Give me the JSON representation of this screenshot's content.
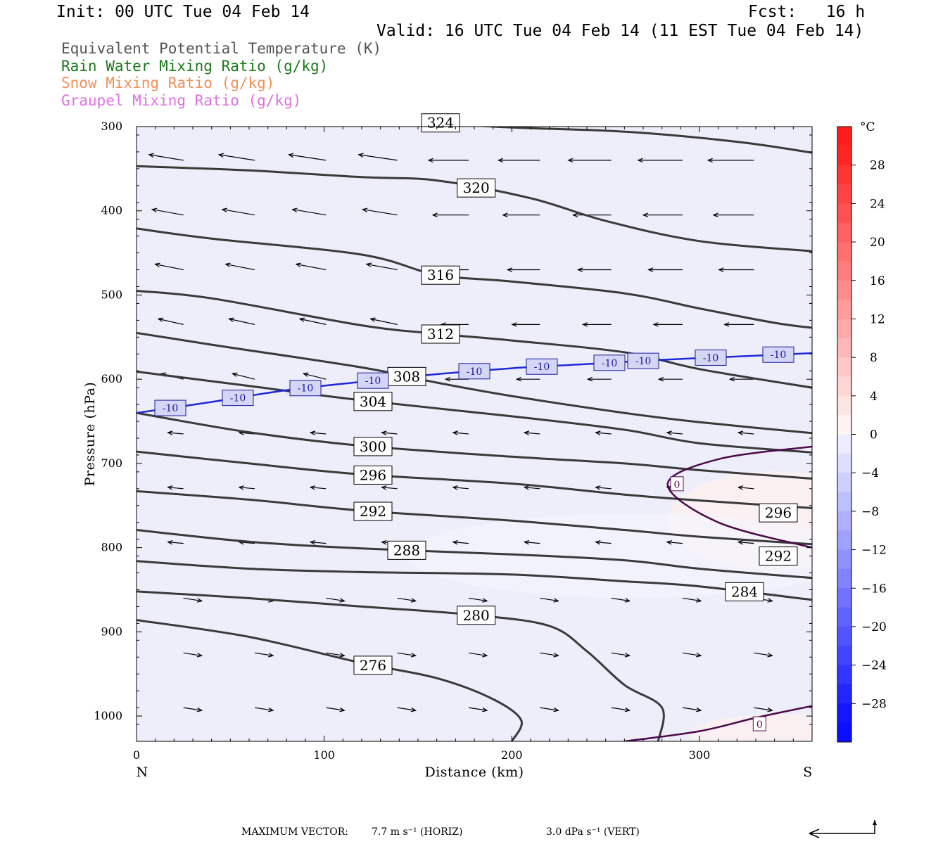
{
  "header": {
    "init": "Init: 00 UTC Tue 04 Feb 14",
    "fcst": "Fcst:   16 h",
    "valid": "Valid: 16 UTC Tue 04 Feb 14 (11 EST Tue 04 Feb 14)"
  },
  "legend": [
    {
      "label": "Equivalent Potential Temperature (K)",
      "color": "#555555"
    },
    {
      "label": "Rain Water Mixing Ratio (g/kg)",
      "color": "#1b7a1b"
    },
    {
      "label": "Snow Mixing Ratio (g/kg)",
      "color": "#f0905a"
    },
    {
      "label": "Graupel Mixing Ratio (g/kg)",
      "color": "#e070e0"
    }
  ],
  "footer": {
    "max_vector_label": "MAXIMUM VECTOR:",
    "horiz": "7.7 m s⁻¹ (HORIZ)",
    "vert": "3.0 dPa s⁻¹ (VERT)"
  },
  "chart_data": {
    "type": "cross-section",
    "xlabel": "Distance (km)",
    "ylabel": "Pressure (hPa)",
    "x_ticks": [
      0,
      100,
      200,
      300
    ],
    "y_ticks": [
      300,
      400,
      500,
      600,
      700,
      800,
      900,
      1000
    ],
    "xlim": [
      0,
      360
    ],
    "ylim": [
      1030,
      300
    ],
    "x_end_labels": {
      "left": "N",
      "right": "S"
    },
    "colorbar": {
      "unit": "°C",
      "ticks": [
        28,
        24,
        20,
        16,
        12,
        8,
        4,
        0,
        -4,
        -8,
        -12,
        -16,
        -20,
        -24,
        -28
      ],
      "range": [
        -32,
        32
      ]
    },
    "theta_e_contours": [
      {
        "value": 324,
        "points": [
          [
            0,
            280
          ],
          [
            60,
            283
          ],
          [
            120,
            289
          ],
          [
            190,
            300
          ],
          [
            260,
            306
          ],
          [
            320,
            318
          ],
          [
            360,
            331
          ]
        ]
      },
      {
        "value": 320,
        "points": [
          [
            0,
            347
          ],
          [
            60,
            352
          ],
          [
            120,
            360
          ],
          [
            160,
            364
          ],
          [
            210,
            385
          ],
          [
            250,
            412
          ],
          [
            300,
            436
          ],
          [
            360,
            448
          ]
        ]
      },
      {
        "value": 316,
        "points": [
          [
            0,
            421
          ],
          [
            40,
            433
          ],
          [
            120,
            452
          ],
          [
            160,
            476
          ],
          [
            200,
            484
          ],
          [
            260,
            498
          ],
          [
            300,
            516
          ],
          [
            340,
            533
          ],
          [
            360,
            539
          ]
        ]
      },
      {
        "value": 312,
        "points": [
          [
            0,
            495
          ],
          [
            40,
            504
          ],
          [
            120,
            536
          ],
          [
            160,
            546
          ],
          [
            200,
            554
          ],
          [
            260,
            568
          ],
          [
            300,
            588
          ],
          [
            360,
            610
          ]
        ]
      },
      {
        "value": 308,
        "points": [
          [
            0,
            545
          ],
          [
            40,
            559
          ],
          [
            120,
            586
          ],
          [
            160,
            604
          ],
          [
            200,
            620
          ],
          [
            260,
            640
          ],
          [
            300,
            651
          ],
          [
            360,
            664
          ]
        ]
      },
      {
        "value": 304,
        "points": [
          [
            0,
            591
          ],
          [
            60,
            608
          ],
          [
            120,
            625
          ],
          [
            200,
            644
          ],
          [
            260,
            660
          ],
          [
            300,
            676
          ],
          [
            360,
            687
          ]
        ]
      },
      {
        "value": 300,
        "points": [
          [
            0,
            640
          ],
          [
            60,
            663
          ],
          [
            120,
            679
          ],
          [
            200,
            692
          ],
          [
            260,
            700
          ],
          [
            300,
            708
          ],
          [
            360,
            718
          ]
        ]
      },
      {
        "value": 296,
        "points": [
          [
            0,
            686
          ],
          [
            60,
            700
          ],
          [
            120,
            713
          ],
          [
            200,
            724
          ],
          [
            260,
            737
          ],
          [
            300,
            744
          ],
          [
            360,
            753
          ]
        ]
      },
      {
        "value": 292,
        "points": [
          [
            0,
            733
          ],
          [
            60,
            743
          ],
          [
            120,
            756
          ],
          [
            200,
            768
          ],
          [
            260,
            779
          ],
          [
            300,
            787
          ],
          [
            360,
            796
          ]
        ]
      },
      {
        "value": 288,
        "points": [
          [
            0,
            779
          ],
          [
            60,
            793
          ],
          [
            120,
            801
          ],
          [
            200,
            808
          ],
          [
            260,
            815
          ],
          [
            300,
            825
          ],
          [
            360,
            836
          ]
        ]
      },
      {
        "value": 284,
        "points": [
          [
            0,
            816
          ],
          [
            60,
            825
          ],
          [
            120,
            829
          ],
          [
            200,
            832
          ],
          [
            260,
            840
          ],
          [
            300,
            846
          ],
          [
            360,
            862
          ]
        ]
      },
      {
        "value": 280,
        "points": [
          [
            0,
            852
          ],
          [
            60,
            860
          ],
          [
            120,
            870
          ],
          [
            180,
            880
          ],
          [
            220,
            893
          ],
          [
            240,
            923
          ],
          [
            260,
            963
          ],
          [
            280,
            990
          ],
          [
            278,
            1030
          ]
        ]
      },
      {
        "value": 276,
        "points": [
          [
            0,
            886
          ],
          [
            60,
            906
          ],
          [
            120,
            937
          ],
          [
            160,
            955
          ],
          [
            190,
            980
          ],
          [
            205,
            1005
          ],
          [
            200,
            1030
          ]
        ]
      }
    ],
    "zero_isotherm": [
      {
        "points": [
          [
            360,
            680
          ],
          [
            310,
            695
          ],
          [
            283,
            725
          ],
          [
            310,
            770
          ],
          [
            360,
            800
          ]
        ]
      },
      {
        "points": [
          [
            260,
            1030
          ],
          [
            300,
            1018
          ],
          [
            330,
            1002
          ],
          [
            360,
            988
          ]
        ]
      }
    ],
    "minus10_isotherm": {
      "value": -10,
      "points": [
        [
          0,
          640
        ],
        [
          40,
          627
        ],
        [
          80,
          613
        ],
        [
          120,
          603
        ],
        [
          160,
          594
        ],
        [
          200,
          587
        ],
        [
          240,
          582
        ],
        [
          280,
          577
        ],
        [
          320,
          573
        ],
        [
          360,
          569
        ]
      ]
    }
  }
}
